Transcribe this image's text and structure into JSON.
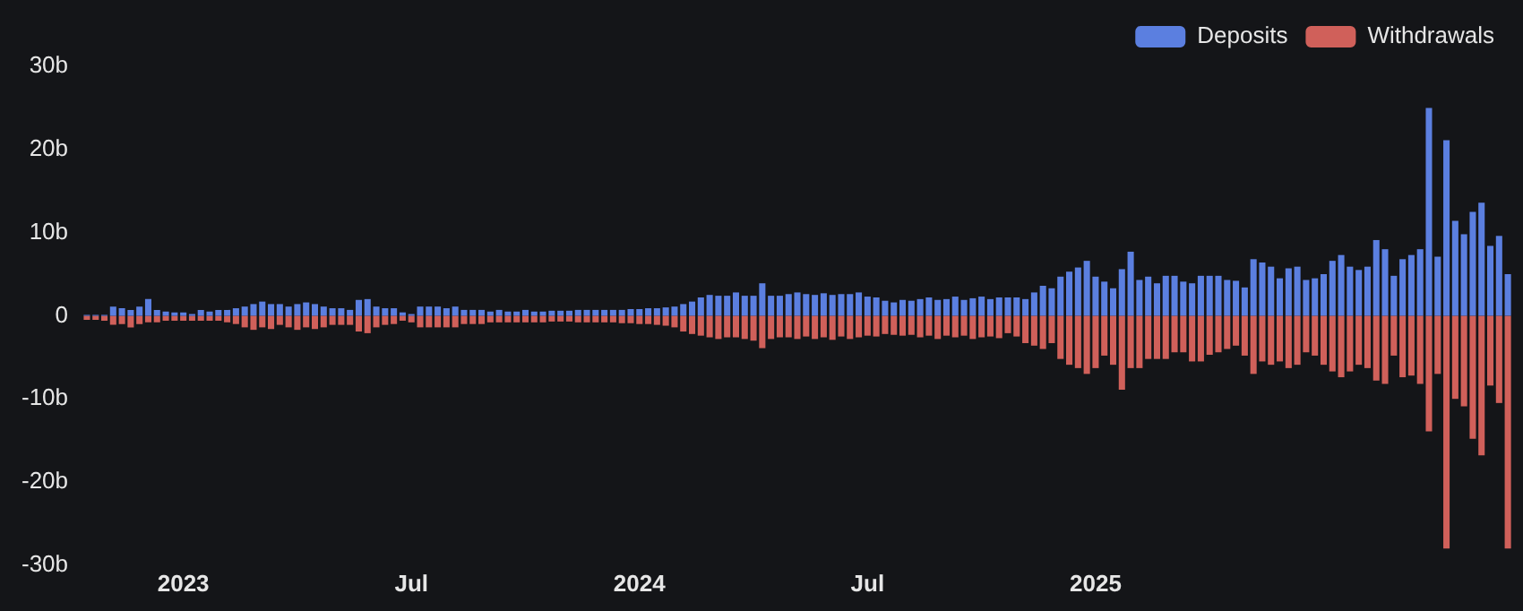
{
  "chart_data": {
    "type": "bar",
    "stacked": true,
    "legend": "top right",
    "grid": false,
    "categories": [
      null,
      null,
      null,
      null,
      null,
      null,
      null,
      null,
      null,
      null,
      null,
      "2023",
      null,
      null,
      null,
      null,
      null,
      null,
      null,
      null,
      null,
      null,
      null,
      null,
      null,
      null,
      null,
      null,
      null,
      null,
      null,
      null,
      null,
      null,
      null,
      null,
      null,
      "Jul",
      null,
      null,
      null,
      null,
      null,
      null,
      null,
      null,
      null,
      null,
      null,
      null,
      null,
      null,
      null,
      null,
      null,
      null,
      null,
      null,
      null,
      null,
      null,
      null,
      null,
      "2024",
      null,
      null,
      null,
      null,
      null,
      null,
      null,
      null,
      null,
      null,
      null,
      null,
      null,
      null,
      null,
      null,
      null,
      null,
      null,
      null,
      null,
      null,
      null,
      null,
      null,
      "Jul",
      null,
      null,
      null,
      null,
      null,
      null,
      null,
      null,
      null,
      null,
      null,
      null,
      null,
      null,
      null,
      null,
      null,
      null,
      null,
      null,
      null,
      null,
      null,
      null,
      null,
      "2025",
      null,
      null,
      null,
      null,
      null,
      null,
      null,
      null,
      null,
      null,
      null,
      null,
      null,
      null,
      null,
      null,
      null,
      null,
      null,
      null,
      null,
      null,
      null,
      null,
      null,
      null,
      null,
      null,
      null,
      null,
      null,
      null,
      null,
      null,
      null,
      null,
      null,
      null,
      null,
      null,
      null,
      null,
      null,
      null,
      null,
      null,
      null
    ],
    "series": [
      {
        "name": "Deposits",
        "color": "#5b7fe0",
        "values": [
          0.1,
          0.1,
          0.1,
          1.1,
          0.9,
          0.7,
          1.1,
          2.0,
          0.7,
          0.5,
          0.4,
          0.4,
          0.2,
          0.7,
          0.5,
          0.7,
          0.7,
          0.9,
          1.1,
          1.4,
          1.7,
          1.4,
          1.4,
          1.1,
          1.4,
          1.6,
          1.4,
          1.1,
          0.9,
          0.9,
          0.7,
          1.9,
          2.0,
          1.1,
          0.9,
          0.9,
          0.4,
          0.2,
          1.1,
          1.1,
          1.1,
          0.9,
          1.1,
          0.7,
          0.7,
          0.7,
          0.5,
          0.7,
          0.5,
          0.5,
          0.7,
          0.5,
          0.5,
          0.6,
          0.6,
          0.6,
          0.7,
          0.7,
          0.7,
          0.7,
          0.7,
          0.7,
          0.8,
          0.8,
          0.9,
          0.9,
          1.0,
          1.1,
          1.4,
          1.7,
          2.2,
          2.5,
          2.4,
          2.4,
          2.8,
          2.4,
          2.4,
          3.9,
          2.4,
          2.4,
          2.6,
          2.8,
          2.6,
          2.5,
          2.7,
          2.5,
          2.6,
          2.6,
          2.8,
          2.3,
          2.2,
          1.8,
          1.6,
          1.9,
          1.8,
          2.0,
          2.2,
          1.9,
          2.0,
          2.3,
          1.9,
          2.1,
          2.3,
          2.0,
          2.2,
          2.2,
          2.2,
          2.0,
          2.8,
          3.6,
          3.3,
          4.7,
          5.3,
          5.8,
          6.6,
          4.7,
          4.1,
          3.3,
          5.6,
          7.7,
          4.3,
          4.7,
          3.9,
          4.8,
          4.8,
          4.1,
          3.9,
          4.8,
          4.8,
          4.8,
          4.3,
          4.2,
          3.4,
          6.8,
          6.4,
          5.9,
          4.5,
          5.7,
          5.9,
          4.3,
          4.5,
          5.0,
          6.6,
          7.3,
          5.9,
          5.5,
          5.9,
          9.1,
          8.0,
          4.8,
          6.8,
          7.3,
          8.0,
          25,
          7.1,
          21.1,
          11.4,
          9.8,
          12.5,
          13.6,
          8.4,
          9.6,
          5.0
        ]
      },
      {
        "name": "Withdrawals",
        "color": "#d0605a",
        "values": [
          -0.5,
          -0.5,
          -0.6,
          -1.1,
          -1.0,
          -1.4,
          -1.0,
          -0.8,
          -0.8,
          -0.6,
          -0.6,
          -0.6,
          -0.6,
          -0.6,
          -0.6,
          -0.6,
          -0.8,
          -1.0,
          -1.4,
          -1.7,
          -1.4,
          -1.6,
          -1.1,
          -1.4,
          -1.7,
          -1.4,
          -1.6,
          -1.4,
          -1.1,
          -1.1,
          -1.1,
          -1.9,
          -2.1,
          -1.4,
          -1.1,
          -1.0,
          -0.6,
          -0.8,
          -1.4,
          -1.4,
          -1.4,
          -1.4,
          -1.4,
          -1.0,
          -1.0,
          -1.0,
          -0.8,
          -0.8,
          -0.8,
          -0.8,
          -0.8,
          -0.8,
          -0.8,
          -0.7,
          -0.7,
          -0.7,
          -0.8,
          -0.8,
          -0.8,
          -0.8,
          -0.8,
          -0.9,
          -0.9,
          -1.0,
          -1.0,
          -1.1,
          -1.2,
          -1.4,
          -1.9,
          -2.2,
          -2.4,
          -2.6,
          -2.8,
          -2.6,
          -2.6,
          -2.8,
          -3.0,
          -3.9,
          -2.8,
          -2.6,
          -2.6,
          -2.8,
          -2.5,
          -2.8,
          -2.6,
          -2.9,
          -2.5,
          -2.8,
          -2.6,
          -2.4,
          -2.5,
          -2.2,
          -2.3,
          -2.4,
          -2.3,
          -2.6,
          -2.4,
          -2.8,
          -2.4,
          -2.6,
          -2.4,
          -2.8,
          -2.6,
          -2.5,
          -2.7,
          -2.1,
          -2.5,
          -3.3,
          -3.6,
          -4.0,
          -3.3,
          -5.2,
          -5.9,
          -6.3,
          -7.0,
          -6.3,
          -4.8,
          -5.9,
          -8.9,
          -6.3,
          -6.3,
          -5.2,
          -5.2,
          -5.2,
          -4.4,
          -4.4,
          -5.5,
          -5.5,
          -4.7,
          -4.4,
          -4.0,
          -3.6,
          -4.8,
          -7.0,
          -5.5,
          -5.9,
          -5.5,
          -6.3,
          -5.9,
          -4.4,
          -4.8,
          -5.9,
          -6.7,
          -7.4,
          -6.7,
          -5.9,
          -6.3,
          -7.8,
          -8.2,
          -4.8,
          -7.4,
          -7.2,
          -8.2,
          -13.9,
          -7.0,
          -28,
          -10.0,
          -10.9,
          -14.8,
          -16.8,
          -8.4,
          -10.5,
          -28
        ]
      }
    ],
    "ylim": [
      -30,
      30
    ],
    "yticks": [
      {
        "value": -30,
        "label": "-30b"
      },
      {
        "value": -20,
        "label": "-20b"
      },
      {
        "value": -10,
        "label": "-10b"
      },
      0,
      {
        "value": 10,
        "label": "10b"
      },
      {
        "value": 20,
        "label": "20b"
      },
      {
        "value": 30,
        "label": "30b"
      }
    ]
  }
}
